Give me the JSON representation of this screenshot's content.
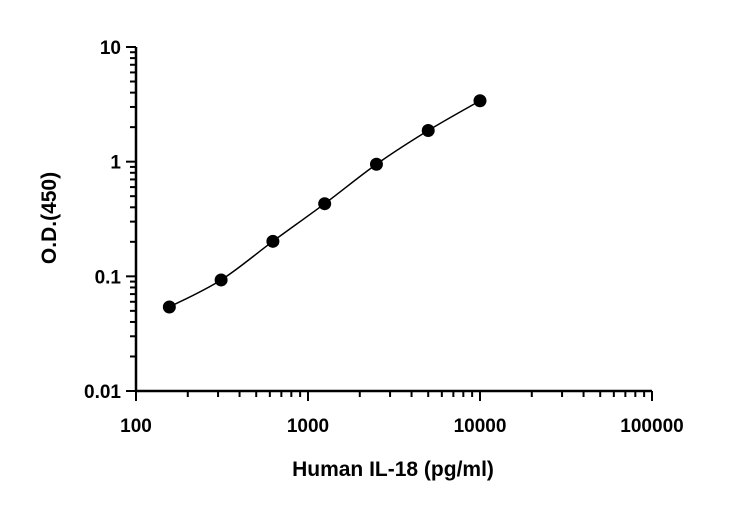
{
  "chart_data": {
    "type": "scatter",
    "title": "",
    "xlabel": "Human IL-18 (pg/ml)",
    "ylabel": "O.D.(450)",
    "x_scale": "log",
    "y_scale": "log",
    "xlim": [
      100,
      100000
    ],
    "ylim": [
      0.01,
      10
    ],
    "x_ticks": [
      100,
      1000,
      10000,
      100000
    ],
    "x_tick_labels": [
      "100",
      "1000",
      "10000",
      "100000"
    ],
    "y_ticks": [
      0.01,
      0.1,
      1,
      10
    ],
    "y_tick_labels": [
      "0.01",
      "0.1",
      "1",
      "10"
    ],
    "grid": false,
    "legend": "none",
    "series": [
      {
        "points": [
          {
            "x": 156.25,
            "y": 0.054
          },
          {
            "x": 312.5,
            "y": 0.093
          },
          {
            "x": 625,
            "y": 0.202
          },
          {
            "x": 1250,
            "y": 0.43
          },
          {
            "x": 2500,
            "y": 0.95
          },
          {
            "x": 5000,
            "y": 1.87
          },
          {
            "x": 10000,
            "y": 3.4
          }
        ],
        "fit_curve": true
      }
    ],
    "colors": {
      "marker": "#000000",
      "line": "#000000",
      "axis": "#000000"
    }
  }
}
